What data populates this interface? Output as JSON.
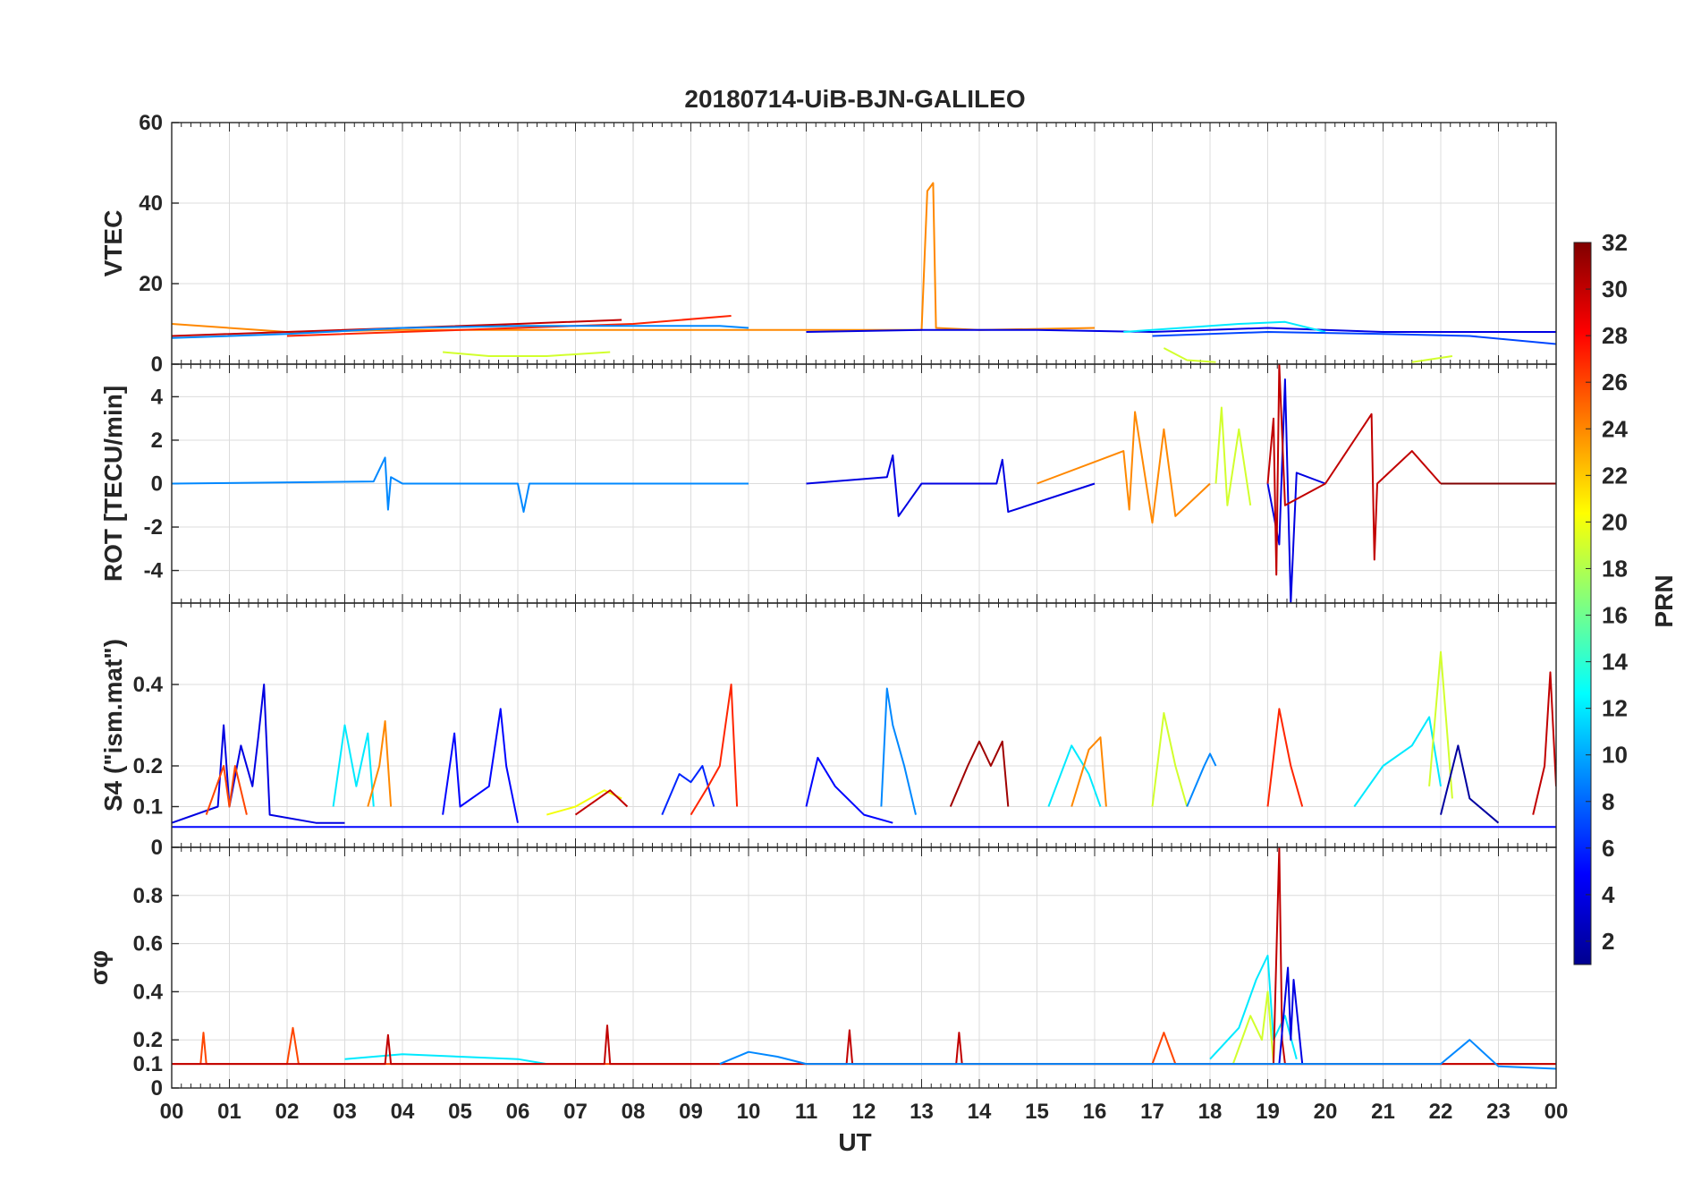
{
  "figure": {
    "title": "20180714-UiB-BJN-GALILEO",
    "xlabel": "UT",
    "x_ticks": [
      "00",
      "01",
      "02",
      "03",
      "04",
      "05",
      "06",
      "07",
      "08",
      "09",
      "10",
      "11",
      "12",
      "13",
      "14",
      "15",
      "16",
      "17",
      "18",
      "19",
      "20",
      "21",
      "22",
      "23",
      "00"
    ],
    "colorbar": {
      "label": "PRN",
      "range": [
        1,
        32
      ],
      "ticks": [
        "2",
        "4",
        "6",
        "8",
        "10",
        "12",
        "14",
        "16",
        "18",
        "20",
        "22",
        "24",
        "26",
        "28",
        "30",
        "32"
      ],
      "colormap": "jet"
    }
  },
  "chart_data": [
    {
      "type": "line",
      "panel": "VTEC",
      "ylabel": "VTEC",
      "ylim": [
        0,
        60
      ],
      "y_ticks": [
        "0",
        "20",
        "40",
        "60"
      ],
      "grid": true,
      "series": [
        {
          "prn": 24,
          "x": [
            0.0,
            2.0,
            4.0,
            6.0,
            8.0,
            10.0,
            12.0,
            13.0,
            13.1,
            13.2,
            13.25,
            14.0,
            16.0
          ],
          "y": [
            10,
            8,
            8.5,
            8.5,
            8.5,
            8.5,
            8.5,
            8.5,
            43,
            45,
            9,
            8.5,
            9
          ]
        },
        {
          "prn": 30,
          "x": [
            0.0,
            2.0,
            4.0,
            6.0,
            7.8
          ],
          "y": [
            7,
            8,
            9,
            10,
            11
          ]
        },
        {
          "prn": 27,
          "x": [
            2.0,
            4.0,
            6.0,
            8.0,
            9.7
          ],
          "y": [
            7,
            8,
            9,
            10,
            12
          ]
        },
        {
          "prn": 9,
          "x": [
            0.0,
            2.0,
            4.0,
            6.0,
            9.5,
            10.0
          ],
          "y": [
            6.5,
            7.5,
            9,
            9.5,
            9.5,
            9
          ]
        },
        {
          "prn": 4,
          "x": [
            11.0,
            13.0,
            15.0,
            17.0,
            19.0,
            21.0,
            23.0,
            24.0
          ],
          "y": [
            8,
            8.5,
            8.5,
            8,
            9,
            8,
            8,
            8
          ]
        },
        {
          "prn": 12,
          "x": [
            16.5,
            17.5,
            18.5,
            19.3,
            20.0
          ],
          "y": [
            8,
            9,
            10,
            10.5,
            8
          ]
        },
        {
          "prn": 7,
          "x": [
            17.0,
            19.0,
            21.0,
            22.5,
            24.0
          ],
          "y": [
            7,
            8,
            7.5,
            7,
            5
          ]
        },
        {
          "prn": 19,
          "x": [
            4.7,
            5.5,
            6.5,
            7.6
          ],
          "y": [
            3,
            2,
            2,
            3
          ]
        },
        {
          "prn": 19,
          "x": [
            17.2,
            17.6,
            18.1
          ],
          "y": [
            4,
            1,
            0.5
          ]
        },
        {
          "prn": 19,
          "x": [
            21.5,
            22.2
          ],
          "y": [
            0.5,
            2
          ]
        }
      ]
    },
    {
      "type": "line",
      "panel": "ROT",
      "ylabel": "ROT [TECU/min]",
      "ylim": [
        -5.5,
        5.5
      ],
      "y_ticks": [
        "-4",
        "-2",
        "0",
        "2",
        "4"
      ],
      "grid": true,
      "series": [
        {
          "prn": 9,
          "x": [
            0.0,
            3.5,
            3.7,
            3.75,
            3.8,
            4.0,
            6.0,
            6.1,
            6.2,
            8.0,
            10.0
          ],
          "y": [
            0,
            0.1,
            1.2,
            -1.2,
            0.3,
            0,
            0,
            -1.3,
            0,
            0,
            0
          ]
        },
        {
          "prn": 4,
          "x": [
            11.0,
            12.4,
            12.5,
            12.6,
            13.0,
            14.3,
            14.4,
            14.5,
            16.0
          ],
          "y": [
            0,
            0.3,
            1.3,
            -1.5,
            0,
            0,
            1.1,
            -1.3,
            0
          ]
        },
        {
          "prn": 24,
          "x": [
            15.0,
            16.5,
            16.6,
            16.7,
            17.0,
            17.2,
            17.4,
            18.0
          ],
          "y": [
            0,
            1.5,
            -1.2,
            3.3,
            -1.8,
            2.5,
            -1.5,
            0
          ]
        },
        {
          "prn": 19,
          "x": [
            18.1,
            18.2,
            18.3,
            18.5,
            18.7
          ],
          "y": [
            0,
            3.5,
            -1,
            2.5,
            -1
          ]
        },
        {
          "prn": 4,
          "x": [
            19.0,
            19.2,
            19.3,
            19.4,
            19.5,
            20.0
          ],
          "y": [
            0,
            -2.8,
            4.8,
            -5.5,
            0.5,
            0
          ]
        },
        {
          "prn": 30,
          "x": [
            19.0,
            19.1,
            19.15,
            19.2,
            19.3,
            20.0,
            20.8,
            20.85,
            20.9,
            21.5,
            22.0
          ],
          "y": [
            0,
            3,
            -4.2,
            5.5,
            -1,
            0,
            3.2,
            -3.5,
            0,
            1.5,
            0
          ]
        },
        {
          "prn": 32,
          "x": [
            22.0,
            23.0,
            24.0
          ],
          "y": [
            0,
            0,
            0
          ]
        }
      ]
    },
    {
      "type": "line",
      "panel": "S4",
      "ylabel": "S4 (\"ism.mat\")",
      "ylim": [
        0,
        0.6
      ],
      "y_ticks": [
        "0",
        "0.1",
        "0.2",
        "0.4"
      ],
      "grid": true,
      "series": [
        {
          "prn": 4,
          "x": [
            0.0,
            0.8,
            0.9,
            1.0,
            1.2,
            1.4,
            1.5,
            1.6,
            1.7,
            2.5,
            3.0
          ],
          "y": [
            0.06,
            0.1,
            0.3,
            0.1,
            0.25,
            0.15,
            0.27,
            0.4,
            0.08,
            0.06,
            0.06
          ]
        },
        {
          "prn": 26,
          "x": [
            0.6,
            0.9,
            1.0,
            1.1,
            1.3
          ],
          "y": [
            0.08,
            0.2,
            0.1,
            0.2,
            0.08
          ]
        },
        {
          "prn": 12,
          "x": [
            2.8,
            3.0,
            3.2,
            3.4,
            3.5
          ],
          "y": [
            0.1,
            0.3,
            0.15,
            0.28,
            0.1
          ]
        },
        {
          "prn": 24,
          "x": [
            3.4,
            3.6,
            3.7,
            3.8
          ],
          "y": [
            0.1,
            0.2,
            0.31,
            0.1
          ]
        },
        {
          "prn": 5,
          "x": [
            4.7,
            4.9,
            5.0,
            5.5,
            5.7,
            5.8,
            6.0
          ],
          "y": [
            0.08,
            0.28,
            0.1,
            0.15,
            0.34,
            0.2,
            0.06
          ]
        },
        {
          "prn": 20,
          "x": [
            6.5,
            7.0,
            7.5,
            7.8
          ],
          "y": [
            0.08,
            0.1,
            0.14,
            0.12
          ]
        },
        {
          "prn": 30,
          "x": [
            7.0,
            7.4,
            7.6,
            7.9
          ],
          "y": [
            0.08,
            0.12,
            0.14,
            0.1
          ]
        },
        {
          "prn": 6,
          "x": [
            8.5,
            8.8,
            9.0,
            9.2,
            9.4
          ],
          "y": [
            0.08,
            0.18,
            0.16,
            0.2,
            0.1
          ]
        },
        {
          "prn": 27,
          "x": [
            9.0,
            9.3,
            9.5,
            9.6,
            9.7,
            9.8
          ],
          "y": [
            0.08,
            0.15,
            0.2,
            0.3,
            0.4,
            0.1
          ]
        },
        {
          "prn": 5,
          "x": [
            11.0,
            11.2,
            11.5,
            12.0,
            12.5
          ],
          "y": [
            0.1,
            0.22,
            0.15,
            0.08,
            0.06
          ]
        },
        {
          "prn": 9,
          "x": [
            12.3,
            12.4,
            12.5,
            12.7,
            12.9
          ],
          "y": [
            0.1,
            0.39,
            0.3,
            0.2,
            0.08
          ]
        },
        {
          "prn": 31,
          "x": [
            13.5,
            13.8,
            14.0,
            14.2,
            14.4,
            14.5
          ],
          "y": [
            0.1,
            0.2,
            0.26,
            0.2,
            0.26,
            0.1
          ]
        },
        {
          "prn": 12,
          "x": [
            15.2,
            15.6,
            15.9,
            16.1
          ],
          "y": [
            0.1,
            0.25,
            0.18,
            0.1
          ]
        },
        {
          "prn": 24,
          "x": [
            15.6,
            15.9,
            16.1,
            16.2
          ],
          "y": [
            0.1,
            0.24,
            0.27,
            0.1
          ]
        },
        {
          "prn": 19,
          "x": [
            17.0,
            17.2,
            17.4,
            17.6
          ],
          "y": [
            0.1,
            0.33,
            0.2,
            0.1
          ]
        },
        {
          "prn": 9,
          "x": [
            17.6,
            17.9,
            18.0,
            18.1
          ],
          "y": [
            0.1,
            0.2,
            0.23,
            0.2
          ]
        },
        {
          "prn": 27,
          "x": [
            19.0,
            19.2,
            19.4,
            19.6
          ],
          "y": [
            0.1,
            0.34,
            0.2,
            0.1
          ]
        },
        {
          "prn": 12,
          "x": [
            20.5,
            21.0,
            21.5,
            21.8,
            22.0
          ],
          "y": [
            0.1,
            0.2,
            0.25,
            0.32,
            0.15
          ]
        },
        {
          "prn": 19,
          "x": [
            21.8,
            22.0,
            22.1,
            22.2
          ],
          "y": [
            0.15,
            0.48,
            0.3,
            0.12
          ]
        },
        {
          "prn": 2,
          "x": [
            22.0,
            22.3,
            22.5,
            23.0
          ],
          "y": [
            0.08,
            0.25,
            0.12,
            0.06
          ]
        },
        {
          "prn": 30,
          "x": [
            23.6,
            23.8,
            23.9,
            24.0
          ],
          "y": [
            0.08,
            0.2,
            0.43,
            0.15
          ]
        },
        {
          "prn": 5,
          "x": [
            0.0,
            6.0,
            12.0,
            18.0,
            24.0
          ],
          "y": [
            0.05,
            0.05,
            0.05,
            0.05,
            0.05
          ]
        }
      ]
    },
    {
      "type": "line",
      "panel": "sigma_phi",
      "ylabel": "σφ",
      "ylim": [
        0,
        1
      ],
      "y_ticks": [
        "0",
        "0.1",
        "0.2",
        "0.4",
        "0.6",
        "0.8"
      ],
      "grid": true,
      "series": [
        {
          "prn": 26,
          "x": [
            0.0,
            0.5,
            0.55,
            0.6,
            2.0,
            2.1,
            2.2,
            4.0,
            8.0,
            12.0,
            17.0,
            17.2,
            17.4,
            20.0,
            24.0
          ],
          "y": [
            0.1,
            0.1,
            0.23,
            0.1,
            0.1,
            0.25,
            0.1,
            0.1,
            0.1,
            0.1,
            0.1,
            0.23,
            0.1,
            0.1,
            0.1
          ]
        },
        {
          "prn": 12,
          "x": [
            3.0,
            4.0,
            5.0,
            6.0,
            6.5
          ],
          "y": [
            0.12,
            0.14,
            0.13,
            0.12,
            0.1
          ]
        },
        {
          "prn": 12,
          "x": [
            18.0,
            18.5,
            18.8,
            19.0,
            19.1,
            19.3,
            19.5
          ],
          "y": [
            0.12,
            0.25,
            0.45,
            0.55,
            0.2,
            0.3,
            0.12
          ]
        },
        {
          "prn": 19,
          "x": [
            18.4,
            18.7,
            18.9,
            19.0,
            19.1
          ],
          "y": [
            0.1,
            0.3,
            0.2,
            0.4,
            0.1
          ]
        },
        {
          "prn": 30,
          "x": [
            0.0,
            3.7,
            3.75,
            3.8,
            7.5,
            7.55,
            7.6,
            11.7,
            11.75,
            11.8,
            13.6,
            13.65,
            13.7,
            19.1,
            19.2,
            19.25,
            19.3,
            24.0
          ],
          "y": [
            0.1,
            0.1,
            0.22,
            0.1,
            0.1,
            0.26,
            0.1,
            0.1,
            0.24,
            0.1,
            0.1,
            0.23,
            0.1,
            0.1,
            1.0,
            0.2,
            0.1,
            0.1
          ]
        },
        {
          "prn": 4,
          "x": [
            19.2,
            19.35,
            19.4,
            19.45,
            19.6
          ],
          "y": [
            0.1,
            0.5,
            0.2,
            0.45,
            0.1
          ]
        },
        {
          "prn": 9,
          "x": [
            9.5,
            10.0,
            10.5,
            11.0,
            22.0,
            22.5,
            23.0,
            24.0
          ],
          "y": [
            0.1,
            0.15,
            0.13,
            0.1,
            0.1,
            0.2,
            0.09,
            0.08
          ]
        }
      ]
    }
  ]
}
